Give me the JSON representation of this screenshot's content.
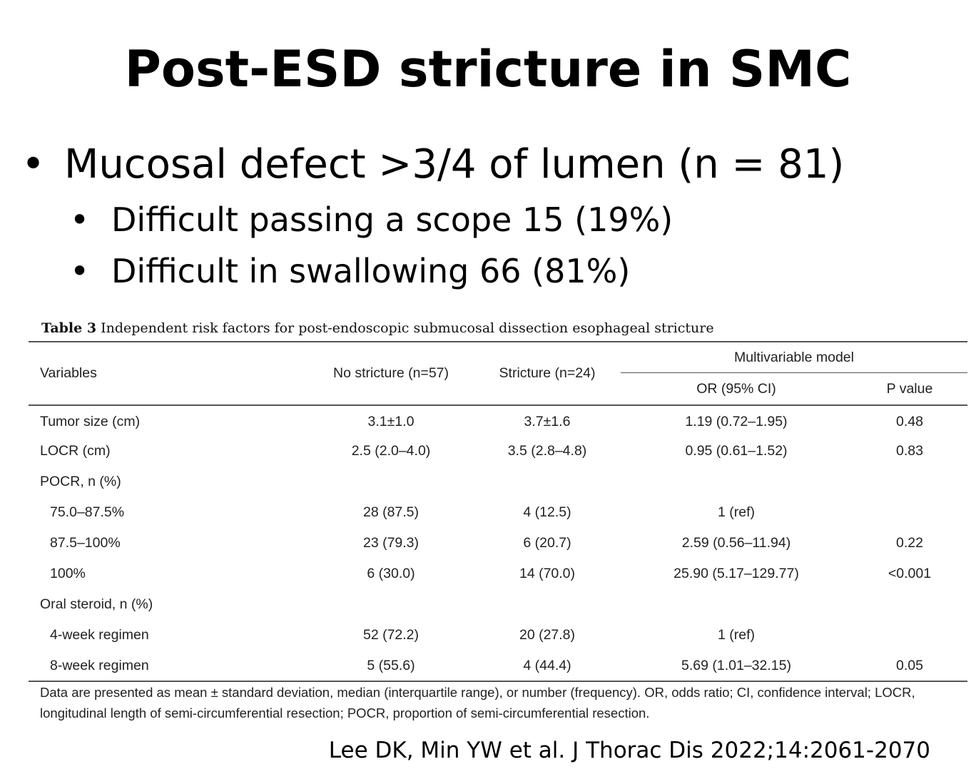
{
  "slide": {
    "title": "Post-ESD stricture in SMC",
    "bullet_glyph": "•",
    "bullets": [
      {
        "text": "Mucosal defect >3/4 of lumen (n = 81)"
      },
      {
        "text": "Difficult passing a scope 15 (19%)"
      },
      {
        "text": "Difficult in swallowing 66 (81%)"
      }
    ],
    "citation": "Lee DK, Min YW et al. J Thorac Dis 2022;14:2061-2070"
  },
  "table": {
    "caption_label": "Table 3",
    "caption_text": "Independent risk factors for post-endoscopic submucosal dissection esophageal stricture",
    "headers": {
      "variables": "Variables",
      "no_stricture": "No stricture (n=57)",
      "stricture": "Stricture (n=24)",
      "multivariable": "Multivariable model",
      "or_ci": "OR (95% CI)",
      "p_value": "P value"
    },
    "rows": [
      {
        "variable": "Tumor size (cm)",
        "no_stricture": "3.1±1.0",
        "stricture": "3.7±1.6",
        "or_ci": "1.19 (0.72–1.95)",
        "p_value": "0.48"
      },
      {
        "variable": "LOCR (cm)",
        "no_stricture": "2.5 (2.0–4.0)",
        "stricture": "3.5 (2.8–4.8)",
        "or_ci": "0.95 (0.61–1.52)",
        "p_value": "0.83"
      },
      {
        "variable": "POCR, n (%)",
        "no_stricture": "",
        "stricture": "",
        "or_ci": "",
        "p_value": ""
      },
      {
        "variable": "75.0–87.5%",
        "no_stricture": "28 (87.5)",
        "stricture": "4 (12.5)",
        "or_ci": "1 (ref)",
        "p_value": ""
      },
      {
        "variable": "87.5–100%",
        "no_stricture": "23 (79.3)",
        "stricture": "6 (20.7)",
        "or_ci": "2.59 (0.56–11.94)",
        "p_value": "0.22"
      },
      {
        "variable": "100%",
        "no_stricture": "6 (30.0)",
        "stricture": "14 (70.0)",
        "or_ci": "25.90 (5.17–129.77)",
        "p_value": "<0.001"
      },
      {
        "variable": "Oral steroid, n (%)",
        "no_stricture": "",
        "stricture": "",
        "or_ci": "",
        "p_value": ""
      },
      {
        "variable": "4-week regimen",
        "no_stricture": "52 (72.2)",
        "stricture": "20 (27.8)",
        "or_ci": "1 (ref)",
        "p_value": ""
      },
      {
        "variable": "8-week regimen",
        "no_stricture": "5 (55.6)",
        "stricture": "4 (44.4)",
        "or_ci": "5.69 (1.01–32.15)",
        "p_value": "0.05"
      }
    ],
    "footnote": "Data are presented as mean ± standard deviation, median (interquartile range), or number (frequency). OR, odds ratio; CI, confidence interval; LOCR, longitudinal length of semi-circumferential resection; POCR, proportion of semi-circumferential resection."
  }
}
